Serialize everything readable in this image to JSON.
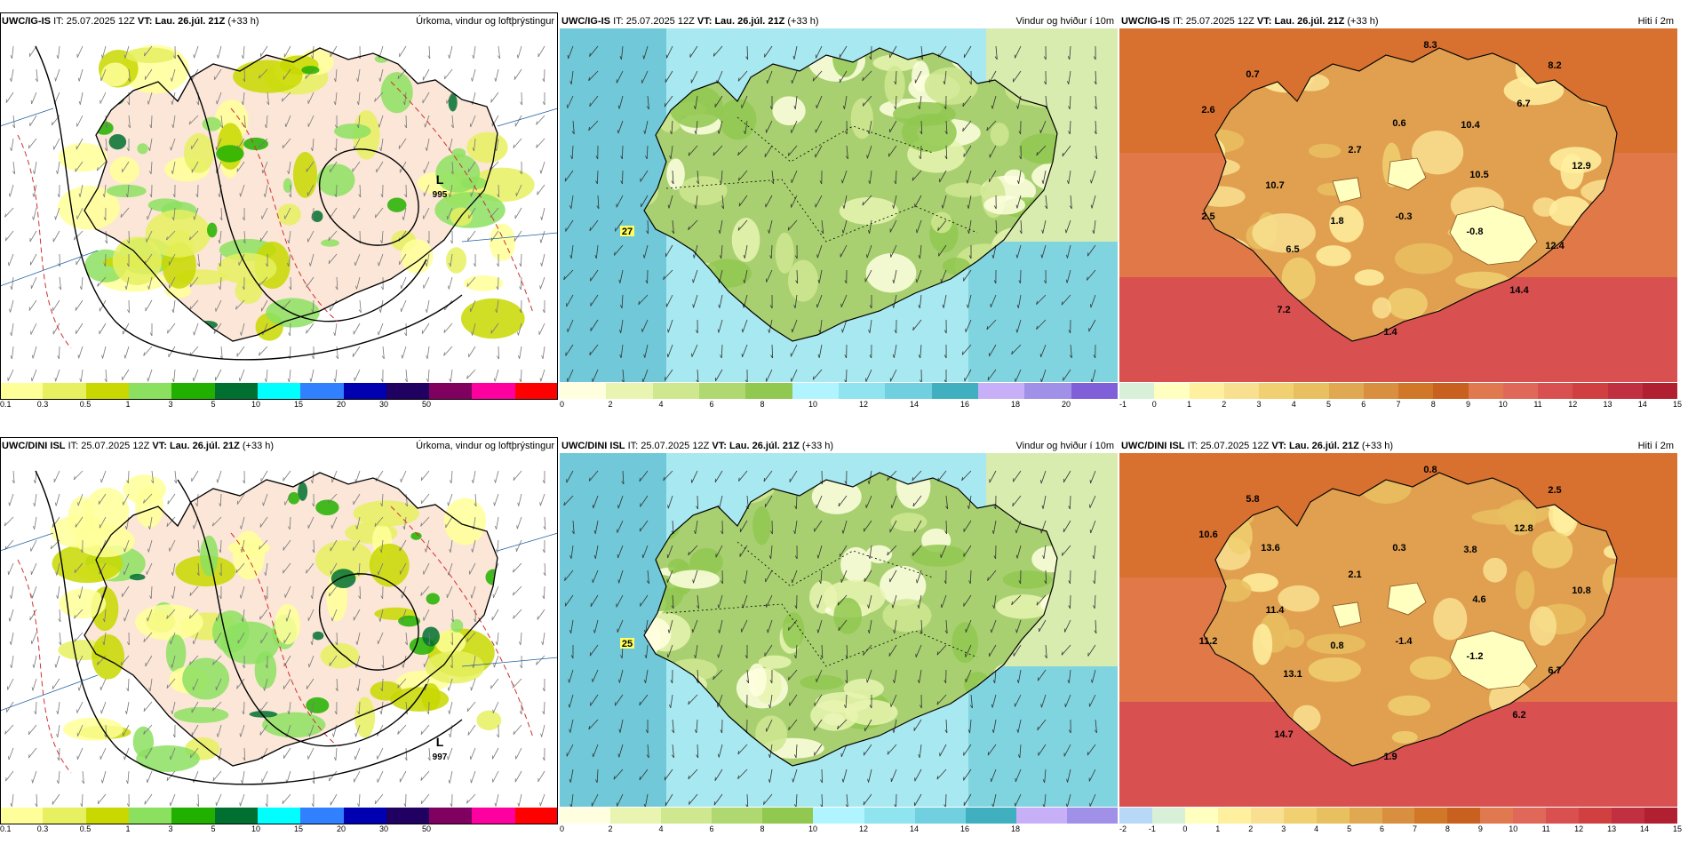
{
  "panels": [
    {
      "model": "UWC/IG-IS",
      "it_label": "IT:",
      "it": "25.07.2025 12Z",
      "vt_label": "VT:",
      "vt": "Lau. 26.júl. 21Z",
      "lead": "(+33 h)",
      "title": "Úrkoma, vindur og loftþrýstingur",
      "type": "precip",
      "colorbar": [
        "#ffff99",
        "#e6f060",
        "#c8d800",
        "#8ce060",
        "#22b000",
        "#007030",
        "#00ffff",
        "#3080ff",
        "#0000b0",
        "#200060",
        "#800060",
        "#ff00a0",
        "#ff0000"
      ],
      "ticks": [
        "0.1",
        "0.3",
        "0.5",
        "1",
        "3",
        "5",
        "10",
        "15",
        "20",
        "30",
        "50"
      ],
      "lows": [
        {
          "letter": "L",
          "value": "995"
        }
      ]
    },
    {
      "model": "UWC/IG-IS",
      "it_label": "IT:",
      "it": "25.07.2025 12Z",
      "vt_label": "VT:",
      "vt": "Lau. 26.júl. 21Z",
      "lead": "(+33 h)",
      "title": "Vindur og hviður í 10m",
      "type": "wind",
      "colorbar": [
        "#ffffe0",
        "#e8f4b0",
        "#cfe890",
        "#b0d870",
        "#90c850",
        "#b0f4ff",
        "#90e4f0",
        "#70d0e0",
        "#40b0c0",
        "#c8b0f8",
        "#a090e8",
        "#8060d8"
      ],
      "ticks": [
        "0",
        "2",
        "4",
        "6",
        "8",
        "10",
        "12",
        "14",
        "16",
        "18",
        "20"
      ],
      "labels": [
        "27"
      ]
    },
    {
      "model": "UWC/IG-IS",
      "it_label": "IT:",
      "it": "25.07.2025 12Z",
      "vt_label": "VT:",
      "vt": "Lau. 26.júl. 21Z",
      "lead": "(+33 h)",
      "title": "Hiti í 2m",
      "type": "temp",
      "colorbar": [
        "#d8f0d8",
        "#ffffc0",
        "#fff0a0",
        "#f8e090",
        "#f0d070",
        "#e8c060",
        "#e0a850",
        "#d89040",
        "#d07828",
        "#c86020",
        "#e07850",
        "#e06858",
        "#d85050",
        "#d04040",
        "#c03040",
        "#b02030"
      ],
      "ticks": [
        "-1",
        "0",
        "1",
        "2",
        "3",
        "4",
        "5",
        "6",
        "7",
        "8",
        "9",
        "10",
        "11",
        "12",
        "13",
        "14",
        "15"
      ],
      "labels": [
        "8.3",
        "0.7",
        "8.2",
        "2.6",
        "0.6",
        "6.7",
        "10.4",
        "2.7",
        "12.9",
        "10.7",
        "10.5",
        "2.5",
        "1.8",
        "-0.3",
        "-0.8",
        "6.5",
        "12.4",
        "14.4",
        "7.2",
        "1.4"
      ]
    },
    {
      "model": "UWC/DINI ISL",
      "it_label": "IT:",
      "it": "25.07.2025 12Z",
      "vt_label": "VT:",
      "vt": "Lau. 26.júl. 21Z",
      "lead": "(+33 h)",
      "title": "Úrkoma, vindur og loftþrýstingur",
      "type": "precip",
      "colorbar": [
        "#ffff99",
        "#e6f060",
        "#c8d800",
        "#8ce060",
        "#22b000",
        "#007030",
        "#00ffff",
        "#3080ff",
        "#0000b0",
        "#200060",
        "#800060",
        "#ff00a0",
        "#ff0000"
      ],
      "ticks": [
        "0.1",
        "0.3",
        "0.5",
        "1",
        "3",
        "5",
        "10",
        "15",
        "20",
        "30",
        "50"
      ],
      "lows": [
        {
          "letter": "L",
          "value": "997"
        }
      ]
    },
    {
      "model": "UWC/DINI ISL",
      "it_label": "IT:",
      "it": "25.07.2025 12Z",
      "vt_label": "VT:",
      "vt": "Lau. 26.júl. 21Z",
      "lead": "(+33 h)",
      "title": "Vindur og hviður í 10m",
      "type": "wind",
      "colorbar": [
        "#ffffe0",
        "#e8f4b0",
        "#cfe890",
        "#b0d870",
        "#90c850",
        "#b0f4ff",
        "#90e4f0",
        "#70d0e0",
        "#40b0c0",
        "#c8b0f8",
        "#a090e8"
      ],
      "ticks": [
        "0",
        "2",
        "4",
        "6",
        "8",
        "10",
        "12",
        "14",
        "16",
        "18"
      ],
      "labels": [
        "25"
      ]
    },
    {
      "model": "UWC/DINI ISL",
      "it_label": "IT:",
      "it": "25.07.2025 12Z",
      "vt_label": "VT:",
      "vt": "Lau. 26.júl. 21Z",
      "lead": "(+33 h)",
      "title": "Hiti í 2m",
      "type": "temp",
      "colorbar": [
        "#b8d8f8",
        "#d8f0d8",
        "#ffffc0",
        "#fff0a0",
        "#f8e090",
        "#f0d070",
        "#e8c060",
        "#e0a850",
        "#d89040",
        "#d07828",
        "#c86020",
        "#e07850",
        "#e06858",
        "#d85050",
        "#d04040",
        "#c03040",
        "#b02030"
      ],
      "ticks": [
        "-2",
        "-1",
        "0",
        "1",
        "2",
        "3",
        "4",
        "5",
        "6",
        "7",
        "8",
        "9",
        "10",
        "11",
        "12",
        "13",
        "14",
        "15"
      ],
      "labels": [
        "0.8",
        "5.8",
        "2.5",
        "10.6",
        "0.3",
        "12.8",
        "3.8",
        "2.1",
        "10.8",
        "11.4",
        "4.6",
        "11.2",
        "0.8",
        "-1.4",
        "-1.2",
        "13.1",
        "6.7",
        "6.2",
        "14.7",
        "1.9",
        "13.6"
      ]
    }
  ]
}
